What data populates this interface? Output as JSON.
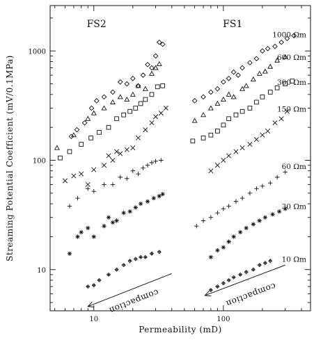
{
  "chart_data": {
    "type": "scatter",
    "xlabel": "Permeability (mD)",
    "ylabel": "Streaming Potential Coefficient (mV/0.1MPa)",
    "x_scale": "log",
    "y_scale": "log",
    "xlim": [
      4.6,
      470
    ],
    "ylim": [
      4.2,
      2600
    ],
    "x_ticks": [
      {
        "value": 10,
        "label": "10"
      },
      {
        "value": 100,
        "label": "100"
      }
    ],
    "y_ticks": [
      {
        "value": 10,
        "label": "10"
      },
      {
        "value": 100,
        "label": "100"
      },
      {
        "value": 1000,
        "label": "1000"
      }
    ],
    "grid": false,
    "panel_labels": [
      {
        "text": "FS2",
        "x": 10.5,
        "y": 1650
      },
      {
        "text": "FS1",
        "x": 118,
        "y": 1650
      }
    ],
    "series": [
      {
        "name": "1000 Ωm",
        "label_y": 1420,
        "marker": "diamond",
        "points": [
          [
            6.7,
            165
          ],
          [
            7.4,
            190
          ],
          [
            8.5,
            220
          ],
          [
            9.6,
            300
          ],
          [
            10.5,
            350
          ],
          [
            12,
            380
          ],
          [
            14,
            420
          ],
          [
            16,
            520
          ],
          [
            18,
            500
          ],
          [
            20,
            560
          ],
          [
            22,
            480
          ],
          [
            24,
            600
          ],
          [
            26,
            750
          ],
          [
            28,
            700
          ],
          [
            30,
            900
          ],
          [
            32,
            1200
          ],
          [
            34,
            1150
          ],
          [
            60,
            350
          ],
          [
            70,
            380
          ],
          [
            80,
            420
          ],
          [
            90,
            450
          ],
          [
            100,
            520
          ],
          [
            110,
            560
          ],
          [
            120,
            640
          ],
          [
            130,
            600
          ],
          [
            140,
            700
          ],
          [
            160,
            780
          ],
          [
            180,
            850
          ],
          [
            200,
            1000
          ],
          [
            220,
            1050
          ],
          [
            250,
            1100
          ],
          [
            280,
            1200
          ],
          [
            310,
            1300
          ],
          [
            350,
            1380
          ]
        ]
      },
      {
        "name": "600 Ωm",
        "label_y": 880,
        "marker": "triangle",
        "points": [
          [
            5.2,
            130
          ],
          [
            7,
            170
          ],
          [
            9,
            240
          ],
          [
            10,
            270
          ],
          [
            12,
            300
          ],
          [
            14,
            340
          ],
          [
            16,
            380
          ],
          [
            18,
            360
          ],
          [
            20,
            400
          ],
          [
            22,
            480
          ],
          [
            25,
            450
          ],
          [
            28,
            620
          ],
          [
            30,
            700
          ],
          [
            32,
            760
          ],
          [
            60,
            230
          ],
          [
            70,
            260
          ],
          [
            80,
            300
          ],
          [
            90,
            330
          ],
          [
            100,
            360
          ],
          [
            110,
            400
          ],
          [
            120,
            380
          ],
          [
            140,
            450
          ],
          [
            150,
            480
          ],
          [
            170,
            550
          ],
          [
            190,
            620
          ],
          [
            210,
            650
          ],
          [
            230,
            720
          ],
          [
            260,
            820
          ],
          [
            300,
            880
          ]
        ]
      },
      {
        "name": "300 Ωm",
        "label_y": 520,
        "marker": "square",
        "points": [
          [
            5.5,
            105
          ],
          [
            6.5,
            120
          ],
          [
            8,
            140
          ],
          [
            9.5,
            160
          ],
          [
            11,
            180
          ],
          [
            13,
            200
          ],
          [
            15,
            240
          ],
          [
            17,
            260
          ],
          [
            19,
            280
          ],
          [
            21,
            300
          ],
          [
            23,
            330
          ],
          [
            25,
            360
          ],
          [
            28,
            400
          ],
          [
            31,
            470
          ],
          [
            34,
            480
          ],
          [
            58,
            150
          ],
          [
            70,
            160
          ],
          [
            80,
            170
          ],
          [
            90,
            185
          ],
          [
            100,
            210
          ],
          [
            110,
            240
          ],
          [
            125,
            260
          ],
          [
            140,
            280
          ],
          [
            160,
            300
          ],
          [
            180,
            340
          ],
          [
            200,
            380
          ],
          [
            230,
            420
          ],
          [
            260,
            460
          ],
          [
            300,
            500
          ],
          [
            340,
            530
          ]
        ]
      },
      {
        "name": "150 Ωm",
        "label_y": 295,
        "marker": "x",
        "points": [
          [
            6,
            65
          ],
          [
            7,
            72
          ],
          [
            8,
            75
          ],
          [
            9,
            60
          ],
          [
            10,
            82
          ],
          [
            12,
            90
          ],
          [
            13,
            110
          ],
          [
            14,
            100
          ],
          [
            15,
            120
          ],
          [
            16,
            115
          ],
          [
            18,
            125
          ],
          [
            20,
            130
          ],
          [
            22,
            160
          ],
          [
            25,
            190
          ],
          [
            28,
            220
          ],
          [
            30,
            250
          ],
          [
            33,
            270
          ],
          [
            36,
            300
          ],
          [
            80,
            80
          ],
          [
            90,
            90
          ],
          [
            100,
            100
          ],
          [
            110,
            110
          ],
          [
            125,
            120
          ],
          [
            140,
            130
          ],
          [
            160,
            140
          ],
          [
            180,
            155
          ],
          [
            200,
            170
          ],
          [
            220,
            185
          ],
          [
            250,
            220
          ],
          [
            280,
            240
          ],
          [
            310,
            280
          ]
        ]
      },
      {
        "name": "60 Ωm",
        "label_y": 88,
        "marker": "plus",
        "points": [
          [
            6.5,
            38
          ],
          [
            7.5,
            45
          ],
          [
            9,
            55
          ],
          [
            10,
            52
          ],
          [
            12,
            60
          ],
          [
            14,
            60
          ],
          [
            16,
            70
          ],
          [
            18,
            68
          ],
          [
            20,
            80
          ],
          [
            22,
            75
          ],
          [
            24,
            85
          ],
          [
            26,
            90
          ],
          [
            28,
            95
          ],
          [
            30,
            98
          ],
          [
            33,
            100
          ],
          [
            62,
            25
          ],
          [
            70,
            28
          ],
          [
            80,
            30
          ],
          [
            90,
            33
          ],
          [
            100,
            36
          ],
          [
            110,
            38
          ],
          [
            125,
            42
          ],
          [
            140,
            45
          ],
          [
            160,
            50
          ],
          [
            180,
            55
          ],
          [
            200,
            58
          ],
          [
            230,
            62
          ],
          [
            260,
            70
          ],
          [
            300,
            78
          ]
        ]
      },
      {
        "name": "30 Ωm",
        "label_y": 38,
        "marker": "asterisk",
        "points": [
          [
            6.5,
            14
          ],
          [
            7.5,
            20
          ],
          [
            8,
            22
          ],
          [
            9,
            24
          ],
          [
            10,
            20
          ],
          [
            12,
            25
          ],
          [
            13,
            30
          ],
          [
            14,
            27
          ],
          [
            15,
            28
          ],
          [
            17,
            33
          ],
          [
            19,
            34
          ],
          [
            21,
            37
          ],
          [
            23,
            40
          ],
          [
            26,
            42
          ],
          [
            29,
            45
          ],
          [
            32,
            47
          ],
          [
            34,
            49
          ],
          [
            80,
            13
          ],
          [
            90,
            15
          ],
          [
            100,
            16
          ],
          [
            110,
            18
          ],
          [
            120,
            20
          ],
          [
            135,
            22
          ],
          [
            150,
            24
          ],
          [
            170,
            26
          ],
          [
            190,
            28
          ],
          [
            210,
            30
          ],
          [
            240,
            32
          ],
          [
            270,
            34
          ],
          [
            300,
            36
          ]
        ]
      },
      {
        "name": "10 Ωm",
        "label_y": 12.5,
        "marker": "diamond-x",
        "points": [
          [
            9,
            7
          ],
          [
            10,
            7.2
          ],
          [
            11,
            8
          ],
          [
            13,
            9
          ],
          [
            15,
            10
          ],
          [
            17,
            11
          ],
          [
            19,
            12
          ],
          [
            21,
            12.5
          ],
          [
            23,
            13
          ],
          [
            25,
            13
          ],
          [
            28,
            14
          ],
          [
            32,
            14.5
          ],
          [
            80,
            6.5
          ],
          [
            90,
            7
          ],
          [
            100,
            7.5
          ],
          [
            110,
            8
          ],
          [
            120,
            8.5
          ],
          [
            135,
            9
          ],
          [
            150,
            9.5
          ],
          [
            170,
            10
          ],
          [
            190,
            11
          ],
          [
            210,
            11.5
          ],
          [
            230,
            12
          ]
        ]
      }
    ],
    "annotations": [
      {
        "text": "compaction",
        "x0": 40,
        "y0": 9.2,
        "x1": 9,
        "y1": 4.6,
        "tx": 20,
        "ty": 5.4
      },
      {
        "text": "compaction",
        "x0": 300,
        "y0": 11,
        "x1": 72,
        "y1": 5.8,
        "tx": 160,
        "ty": 6.2
      }
    ]
  }
}
